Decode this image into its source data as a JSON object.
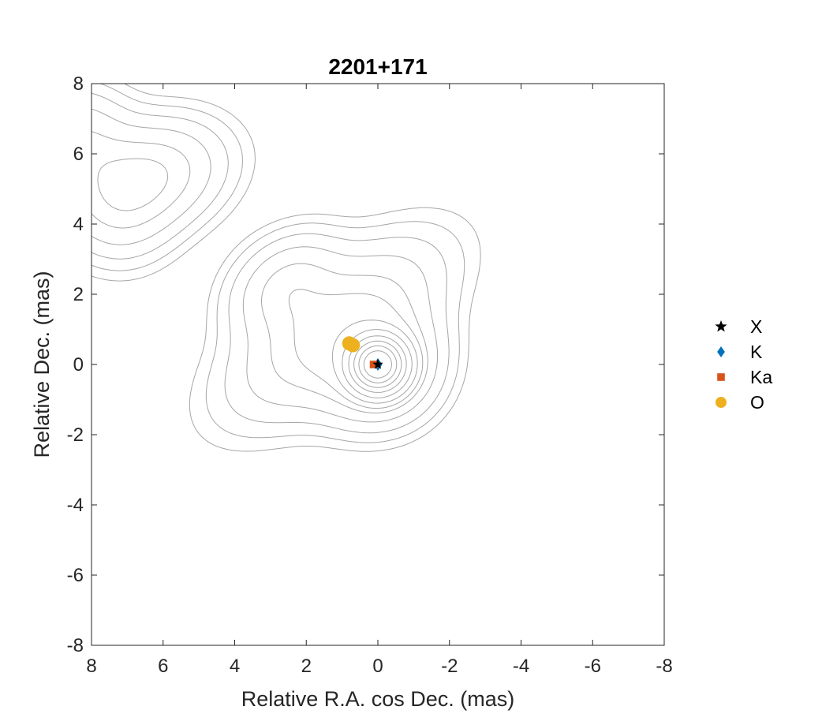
{
  "chart_data": {
    "type": "scatter",
    "title": "2201+171",
    "xlabel": "Relative R.A. cos Dec. (mas)",
    "ylabel": "Relative Dec. (mas)",
    "xlim": [
      8,
      -8
    ],
    "ylim": [
      -8,
      8
    ],
    "x_reversed": true,
    "xticks": [
      8,
      6,
      4,
      2,
      0,
      -2,
      -4,
      -6,
      -8
    ],
    "yticks": [
      -8,
      -6,
      -4,
      -2,
      0,
      2,
      4,
      6,
      8
    ],
    "grid": false,
    "legend_position": "outside-right",
    "contour_color": "#a6a6a6",
    "series": [
      {
        "name": "X",
        "marker": "star",
        "color": "#000000",
        "points": [
          [
            0.0,
            0.0
          ]
        ]
      },
      {
        "name": "K",
        "marker": "diamond",
        "color": "#0072bd",
        "points": [
          [
            0.0,
            0.0
          ]
        ]
      },
      {
        "name": "Ka",
        "marker": "square",
        "color": "#d95319",
        "points": [
          [
            0.12,
            0.0
          ]
        ]
      },
      {
        "name": "O",
        "marker": "circle",
        "color": "#edb120",
        "points": [
          [
            0.8,
            0.6
          ],
          [
            0.7,
            0.55
          ]
        ]
      }
    ]
  }
}
